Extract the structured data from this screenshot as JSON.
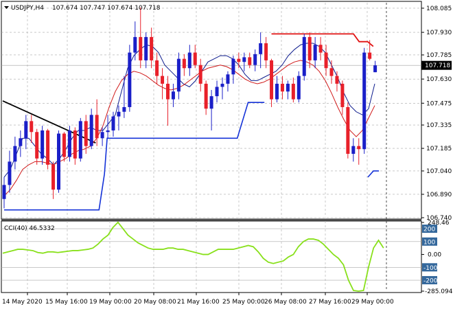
{
  "header": {
    "symbol": "USDJPY,H4",
    "ohlc": "107.674 107.747 107.674 107.718"
  },
  "price_badge": "107.718",
  "cci_badges": [
    {
      "value": "200",
      "level": 200
    },
    {
      "value": "100",
      "level": 100
    },
    {
      "value": "-100",
      "level": -100
    },
    {
      "value": "-200",
      "level": -200
    }
  ],
  "colors": {
    "bull": "#1a1fc8",
    "bear": "#e8202a",
    "ma_fast": "#0b1a8c",
    "ma_slow": "#d01818",
    "step_line": "#1432d8",
    "resistance": "#e01010",
    "trendline": "#000000",
    "cci": "#88e01a",
    "grid": "#a8a8a8",
    "badge": "#34689c"
  },
  "chart_data": [
    {
      "type": "candlestick",
      "title": "USDJPY,H4",
      "y_ticks": [
        "108.085",
        "107.930",
        "107.785",
        "107.630",
        "107.475",
        "107.335",
        "107.185",
        "107.040",
        "106.890",
        "106.740"
      ],
      "ylim": [
        106.74,
        108.12
      ],
      "x_ticks": [
        "14 May 2020",
        "15 May 16:00",
        "19 May 00:00",
        "20 May 08:00",
        "21 May 16:00",
        "25 May 00:00",
        "26 May 08:00",
        "27 May 16:00",
        "29 May 00:00"
      ],
      "candles": [
        [
          106.86,
          107.0,
          106.8,
          106.95
        ],
        [
          106.95,
          107.17,
          106.9,
          107.1
        ],
        [
          107.1,
          107.26,
          107.05,
          107.2
        ],
        [
          107.2,
          107.3,
          107.13,
          107.25
        ],
        [
          107.25,
          107.4,
          107.18,
          107.36
        ],
        [
          107.36,
          107.4,
          107.22,
          107.29
        ],
        [
          107.29,
          107.31,
          107.08,
          107.12
        ],
        [
          107.12,
          107.33,
          107.08,
          107.3
        ],
        [
          107.3,
          107.31,
          107.05,
          107.08
        ],
        [
          107.08,
          107.1,
          106.86,
          106.92
        ],
        [
          106.92,
          107.3,
          106.9,
          107.28
        ],
        [
          107.28,
          107.29,
          107.1,
          107.13
        ],
        [
          107.13,
          107.33,
          107.1,
          107.3
        ],
        [
          107.3,
          107.32,
          107.08,
          107.12
        ],
        [
          107.12,
          107.38,
          107.1,
          107.36
        ],
        [
          107.36,
          107.4,
          107.15,
          107.2
        ],
        [
          107.2,
          107.44,
          107.18,
          107.4
        ],
        [
          107.4,
          107.5,
          107.2,
          107.25
        ],
        [
          107.25,
          107.32,
          107.2,
          107.29
        ],
        [
          107.29,
          107.4,
          107.25,
          107.3
        ],
        [
          107.3,
          107.42,
          107.26,
          107.39
        ],
        [
          107.39,
          107.46,
          107.3,
          107.42
        ],
        [
          107.42,
          107.65,
          107.38,
          107.45
        ],
        [
          107.45,
          107.85,
          107.42,
          107.8
        ],
        [
          107.8,
          108.0,
          107.75,
          107.9
        ],
        [
          107.9,
          108.09,
          107.7,
          107.75
        ],
        [
          107.75,
          107.93,
          107.7,
          107.9
        ],
        [
          107.9,
          107.96,
          107.7,
          107.75
        ],
        [
          107.75,
          107.8,
          107.6,
          107.65
        ],
        [
          107.65,
          107.7,
          107.5,
          107.6
        ],
        [
          107.6,
          107.65,
          107.33,
          107.5
        ],
        [
          107.5,
          107.6,
          107.45,
          107.55
        ],
        [
          107.55,
          107.8,
          107.5,
          107.76
        ],
        [
          107.76,
          107.79,
          107.65,
          107.7
        ],
        [
          107.7,
          107.85,
          107.65,
          107.8
        ],
        [
          107.8,
          107.85,
          107.7,
          107.72
        ],
        [
          107.72,
          107.76,
          107.55,
          107.6
        ],
        [
          107.6,
          107.62,
          107.4,
          107.44
        ],
        [
          107.44,
          107.56,
          107.3,
          107.52
        ],
        [
          107.52,
          107.62,
          107.48,
          107.58
        ],
        [
          107.58,
          107.64,
          107.5,
          107.6
        ],
        [
          107.6,
          107.68,
          107.55,
          107.66
        ],
        [
          107.66,
          107.78,
          107.6,
          107.76
        ],
        [
          107.76,
          107.8,
          107.7,
          107.74
        ],
        [
          107.74,
          107.8,
          107.68,
          107.77
        ],
        [
          107.77,
          107.8,
          107.7,
          107.72
        ],
        [
          107.72,
          107.82,
          107.68,
          107.79
        ],
        [
          107.79,
          107.93,
          107.7,
          107.86
        ],
        [
          107.86,
          107.9,
          107.7,
          107.75
        ],
        [
          107.75,
          107.76,
          107.45,
          107.5
        ],
        [
          107.5,
          107.65,
          107.48,
          107.6
        ],
        [
          107.6,
          107.65,
          107.5,
          107.55
        ],
        [
          107.55,
          107.62,
          107.5,
          107.6
        ],
        [
          107.6,
          107.64,
          107.48,
          107.5
        ],
        [
          107.5,
          107.68,
          107.48,
          107.65
        ],
        [
          107.65,
          107.92,
          107.62,
          107.9
        ],
        [
          107.9,
          107.93,
          107.7,
          107.75
        ],
        [
          107.75,
          107.9,
          107.7,
          107.85
        ],
        [
          107.85,
          107.9,
          107.75,
          107.8
        ],
        [
          107.8,
          107.85,
          107.65,
          107.7
        ],
        [
          107.7,
          107.75,
          107.6,
          107.65
        ],
        [
          107.65,
          107.68,
          107.55,
          107.6
        ],
        [
          107.6,
          107.62,
          107.4,
          107.45
        ],
        [
          107.45,
          107.48,
          107.12,
          107.15
        ],
        [
          107.15,
          107.25,
          107.1,
          107.2
        ],
        [
          107.2,
          107.25,
          107.08,
          107.18
        ],
        [
          107.18,
          107.83,
          107.15,
          107.8
        ],
        [
          107.8,
          107.88,
          107.75,
          107.76
        ],
        [
          107.674,
          107.747,
          107.674,
          107.718
        ]
      ],
      "ma_fast": [
        107.0,
        107.05,
        107.15,
        107.25,
        107.25,
        107.2,
        107.15,
        107.12,
        107.08,
        107.12,
        107.18,
        107.25,
        107.3,
        107.3,
        107.32,
        107.3,
        107.3,
        107.35,
        107.4,
        107.55,
        107.7,
        107.78,
        107.82,
        107.85,
        107.84,
        107.8,
        107.72,
        107.68,
        107.64,
        107.6,
        107.58,
        107.62,
        107.68,
        107.74,
        107.76,
        107.78,
        107.78,
        107.76,
        107.72,
        107.66,
        107.62,
        107.62,
        107.64,
        107.66,
        107.68,
        107.72,
        107.78,
        107.82,
        107.85,
        107.86,
        107.86,
        107.84,
        107.8,
        107.72,
        107.64,
        107.54,
        107.46,
        107.42,
        107.4,
        107.44,
        107.6
      ],
      "ma_slow": [
        106.88,
        106.92,
        106.98,
        107.05,
        107.08,
        107.1,
        107.1,
        107.09,
        107.08,
        107.1,
        107.12,
        107.15,
        107.17,
        107.18,
        107.2,
        107.25,
        107.33,
        107.45,
        107.55,
        107.62,
        107.66,
        107.68,
        107.67,
        107.65,
        107.62,
        107.59,
        107.57,
        107.56,
        107.57,
        107.59,
        107.62,
        107.65,
        107.68,
        107.7,
        107.71,
        107.72,
        107.71,
        107.69,
        107.66,
        107.63,
        107.61,
        107.6,
        107.61,
        107.63,
        107.66,
        107.69,
        107.72,
        107.74,
        107.75,
        107.74,
        107.72,
        107.68,
        107.62,
        107.54,
        107.45,
        107.37,
        107.3,
        107.26,
        107.3,
        107.38,
        107.46
      ],
      "step_line": [
        [
          0,
          106.79
        ],
        [
          35,
          106.79
        ],
        [
          37,
          107.02
        ],
        [
          38,
          107.25
        ],
        [
          86,
          107.25
        ],
        [
          90,
          107.48
        ],
        [
          96,
          107.48
        ]
      ],
      "step_line_tail": [
        [
          133,
          107.0
        ],
        [
          135,
          107.04
        ],
        [
          137,
          107.04
        ]
      ],
      "resistance": [
        [
          96,
          107.92
        ],
        [
          125,
          107.92
        ],
        [
          127,
          107.87
        ],
        [
          130,
          107.87
        ],
        [
          132,
          107.84
        ]
      ],
      "trendline": [
        [
          0,
          107.49
        ],
        [
          33,
          107.22
        ]
      ]
    },
    {
      "type": "line",
      "title": "CCI(40) 46.5332",
      "series_name": "CCI(40)",
      "last_value": 46.5332,
      "y_ticks": [
        "248.46",
        "200",
        "100",
        "0.00",
        "-100",
        "-200",
        "-285.094"
      ],
      "ylim": [
        -285.094,
        248.46
      ],
      "levels": [
        200,
        100,
        -100,
        -200
      ],
      "values": [
        10,
        20,
        30,
        40,
        40,
        35,
        30,
        15,
        10,
        20,
        20,
        15,
        20,
        25,
        30,
        30,
        35,
        40,
        50,
        80,
        120,
        150,
        210,
        250,
        200,
        150,
        120,
        90,
        70,
        50,
        40,
        40,
        40,
        50,
        50,
        40,
        40,
        30,
        20,
        10,
        0,
        0,
        20,
        40,
        40,
        40,
        40,
        50,
        60,
        70,
        60,
        20,
        -30,
        -60,
        -70,
        -60,
        -50,
        -20,
        0,
        60,
        100,
        120,
        120,
        110,
        80,
        40,
        0,
        -30,
        -80,
        -200,
        -280,
        -285,
        -280,
        -100,
        50,
        110,
        50
      ]
    }
  ]
}
